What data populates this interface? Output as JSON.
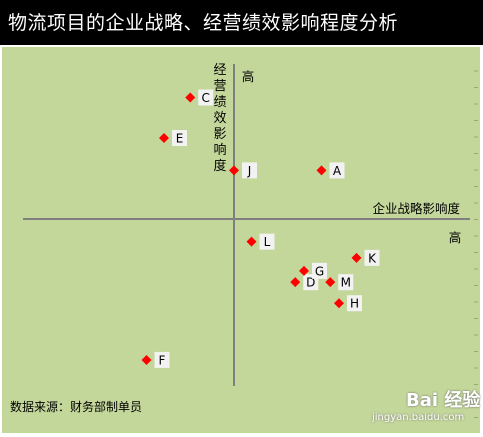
{
  "header": {
    "title": "物流项目的企业战略、经营绩效影响程度分析"
  },
  "source_text": "数据来源：财务部制单员",
  "watermark": {
    "main": "Bai 经验",
    "sub": "jingyan.baidu.com"
  },
  "colors": {
    "plot_bg": "#c4d79b",
    "marker": "#ff0000",
    "axis": "#7f7f7f",
    "label_bg": "#f2f2f2"
  },
  "chart_data": {
    "type": "scatter",
    "title": "物流项目的企业战略、经营绩效影响程度分析",
    "xlabel": "企业战略影响度",
    "ylabel": "经营绩效影响度",
    "x_high_label": "高",
    "y_high_label": "高",
    "xlim": [
      -10,
      10
    ],
    "ylim": [
      -10,
      10
    ],
    "grid": false,
    "points": [
      {
        "label": "A",
        "x": 5,
        "y": 3
      },
      {
        "label": "C",
        "x": -2.5,
        "y": 7.5
      },
      {
        "label": "D",
        "x": 3.5,
        "y": -3.9
      },
      {
        "label": "E",
        "x": -4,
        "y": 5
      },
      {
        "label": "F",
        "x": -5,
        "y": -8.7
      },
      {
        "label": "G",
        "x": 4,
        "y": -3.2
      },
      {
        "label": "H",
        "x": 6,
        "y": -5.2
      },
      {
        "label": "J",
        "x": 0,
        "y": 3
      },
      {
        "label": "K",
        "x": 7,
        "y": -2.4
      },
      {
        "label": "L",
        "x": 1,
        "y": -1.4
      },
      {
        "label": "M",
        "x": 5.5,
        "y": -3.9
      }
    ]
  }
}
